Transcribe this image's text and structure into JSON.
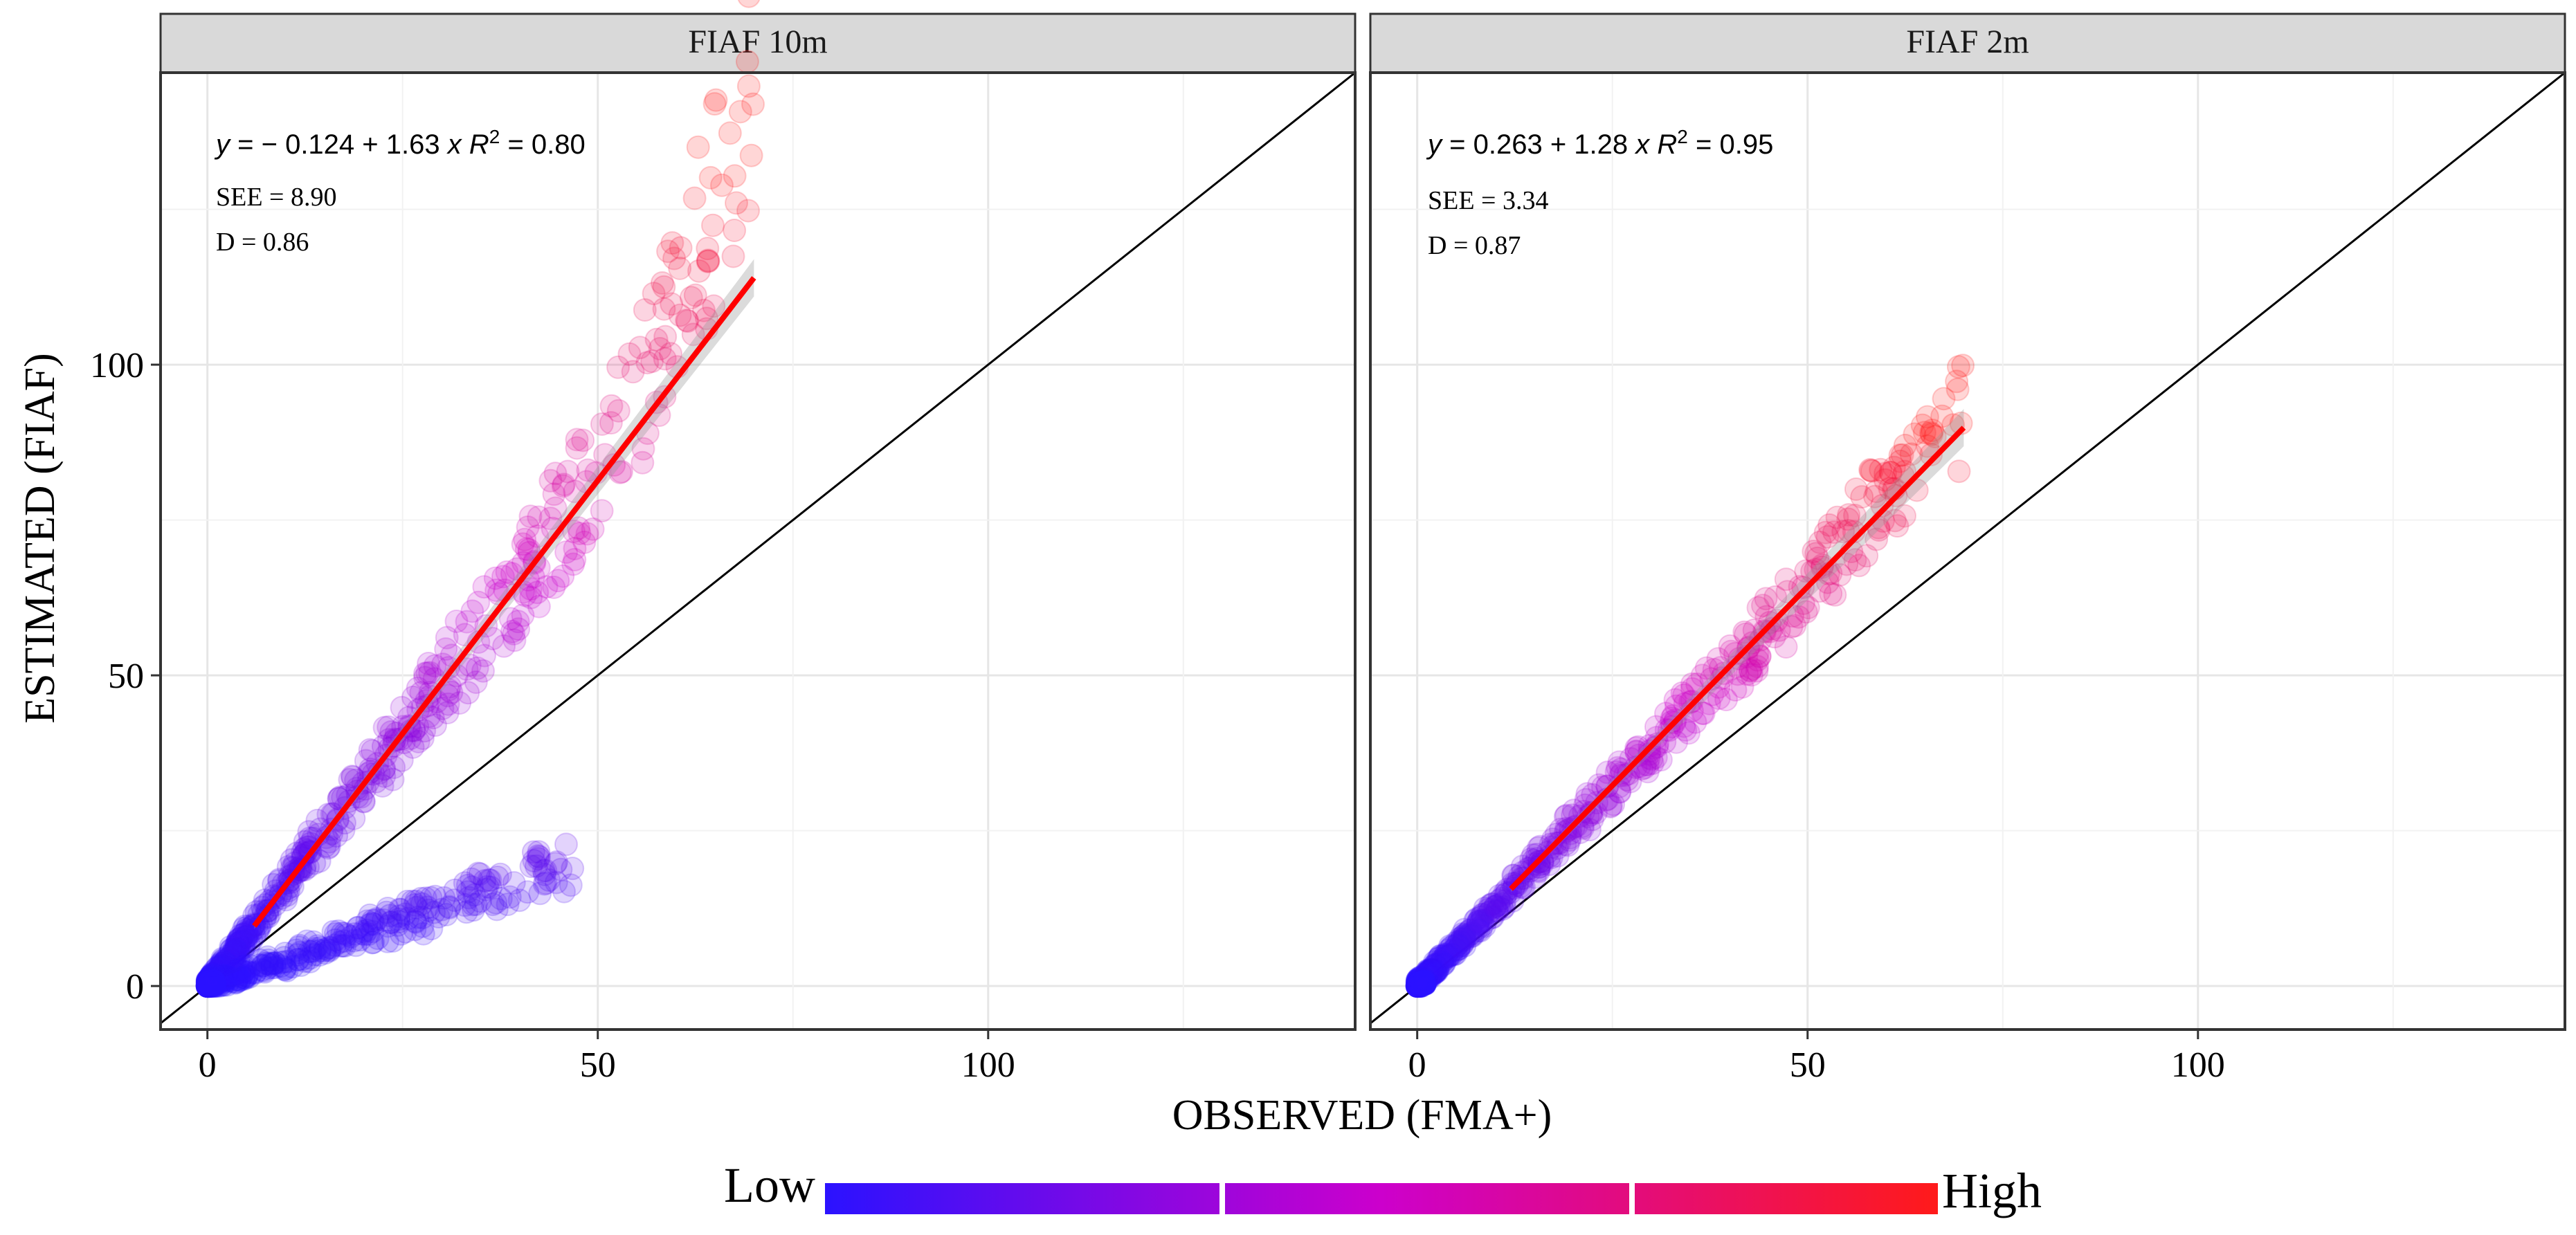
{
  "chart_data": {
    "type": "scatter",
    "xlabel": "OBSERVED (FMA+)",
    "ylabel": "ESTIMATED (FIAF)",
    "xlim": [
      -6,
      147
    ],
    "ylim": [
      -7,
      147
    ],
    "x_ticks": [
      0,
      50,
      100
    ],
    "y_ticks": [
      0,
      50,
      100
    ],
    "reference_line": "1:1",
    "grid": true,
    "colorbar": {
      "low_label": "Low",
      "high_label": "High",
      "low_color": "#2b12ff",
      "mid_color": "#cc00cc",
      "high_color": "#ff1a1a"
    },
    "panels": [
      {
        "title": "FIAF 10m",
        "equation": {
          "y": "y",
          "eq_sign": " = ",
          "intercept": "− 0.124",
          "plus": " + ",
          "slope": "1.63",
          "x": "x",
          "r2_symbol": "R",
          "r2_sup": "2",
          "r2_value": " = 0.80"
        },
        "see": "SEE = 8.90",
        "d": "D = 0.86",
        "fit": {
          "intercept": -0.124,
          "slope": 1.63,
          "x_range": [
            6,
            70
          ]
        },
        "branches": [
          {
            "x_max": 70,
            "slope": 1.63,
            "extra_max": 138,
            "spread": 0.13
          },
          {
            "x_max": 47,
            "slope": 0.42,
            "extra_max": 0,
            "spread": 0.22
          }
        ]
      },
      {
        "title": "FIAF 2m",
        "equation": {
          "y": "y",
          "eq_sign": " = ",
          "intercept": "0.263",
          "plus": " + ",
          "slope": "1.28",
          "x": "x",
          "r2_symbol": "R",
          "r2_sup": "2",
          "r2_value": " = 0.95"
        },
        "see": "SEE = 3.34",
        "d": "D = 0.87",
        "fit": {
          "intercept": 0.263,
          "slope": 1.28,
          "x_range": [
            12,
            70
          ]
        },
        "branches": [
          {
            "x_max": 70,
            "slope": 1.28,
            "extra_max": 94,
            "spread": 0.09
          }
        ]
      }
    ]
  }
}
